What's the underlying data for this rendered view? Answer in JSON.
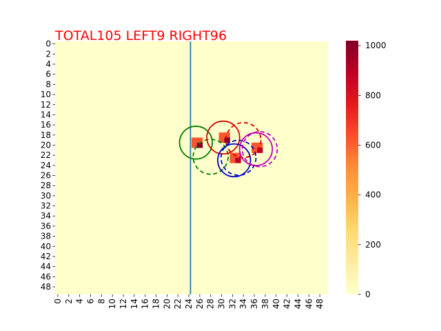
{
  "chart_data": {
    "type": "heatmap",
    "title": "TOTAL105  LEFT9 RIGHT96",
    "title_color": "#ff0000",
    "grid_size": 50,
    "x_ticks": [
      "0",
      "2",
      "4",
      "6",
      "8",
      "10",
      "12",
      "14",
      "16",
      "18",
      "20",
      "22",
      "24",
      "26",
      "28",
      "30",
      "32",
      "34",
      "36",
      "38",
      "40",
      "42",
      "44",
      "46",
      "48"
    ],
    "y_ticks": [
      "0",
      "2",
      "4",
      "6",
      "8",
      "10",
      "12",
      "14",
      "16",
      "18",
      "20",
      "22",
      "24",
      "26",
      "28",
      "30",
      "32",
      "34",
      "36",
      "38",
      "40",
      "42",
      "44",
      "46",
      "48"
    ],
    "colorbar": {
      "min": 0,
      "max": 1020,
      "ticks": [
        "0",
        "200",
        "400",
        "600",
        "800",
        "1000"
      ],
      "colormap": "YlOrRd"
    },
    "background_value": 0,
    "cells": [
      {
        "x": 25,
        "y": 19,
        "value": 620
      },
      {
        "x": 26,
        "y": 19,
        "value": 620
      },
      {
        "x": 25,
        "y": 20,
        "value": 620
      },
      {
        "x": 26,
        "y": 20,
        "value": 1020
      },
      {
        "x": 30,
        "y": 18,
        "value": 620
      },
      {
        "x": 31,
        "y": 18,
        "value": 620
      },
      {
        "x": 30,
        "y": 19,
        "value": 620
      },
      {
        "x": 31,
        "y": 19,
        "value": 1020
      },
      {
        "x": 32,
        "y": 22,
        "value": 620
      },
      {
        "x": 33,
        "y": 22,
        "value": 620
      },
      {
        "x": 32,
        "y": 23,
        "value": 620
      },
      {
        "x": 33,
        "y": 23,
        "value": 900
      },
      {
        "x": 36,
        "y": 20,
        "value": 620
      },
      {
        "x": 37,
        "y": 20,
        "value": 620
      },
      {
        "x": 36,
        "y": 21,
        "value": 620
      },
      {
        "x": 37,
        "y": 21,
        "value": 900
      }
    ],
    "vertical_line": {
      "x": 24.8,
      "color": "#1f77b4"
    },
    "circles": [
      {
        "cx": 25.8,
        "cy": 20.0,
        "r": 3.0,
        "color": "#007f00",
        "style": "solid"
      },
      {
        "cx": 28.5,
        "cy": 22.8,
        "r": 3.2,
        "color": "#007f00",
        "style": "dashed"
      },
      {
        "cx": 30.8,
        "cy": 19.0,
        "r": 3.0,
        "color": "#dd0000",
        "style": "solid"
      },
      {
        "cx": 34.5,
        "cy": 19.5,
        "r": 3.2,
        "color": "#dd0000",
        "style": "dashed"
      },
      {
        "cx": 32.8,
        "cy": 23.5,
        "r": 3.0,
        "color": "#0000cc",
        "style": "solid"
      },
      {
        "cx": 33.6,
        "cy": 23.0,
        "r": 3.2,
        "color": "#0000cc",
        "style": "dashed"
      },
      {
        "cx": 36.8,
        "cy": 21.3,
        "r": 3.0,
        "color": "#bb00bb",
        "style": "solid"
      },
      {
        "cx": 37.5,
        "cy": 21.3,
        "r": 3.2,
        "color": "#bb00bb",
        "style": "dashed"
      }
    ]
  }
}
